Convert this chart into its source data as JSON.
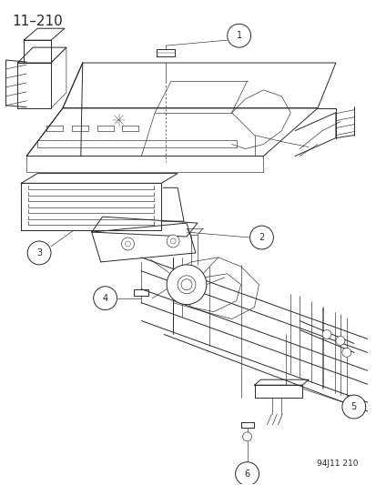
{
  "page_number": "11–210",
  "part_number_stamp": "94J11 210",
  "background_color": "#ffffff",
  "line_color": "#2a2a2a",
  "title_fontsize": 11,
  "stamp_fontsize": 6.5
}
